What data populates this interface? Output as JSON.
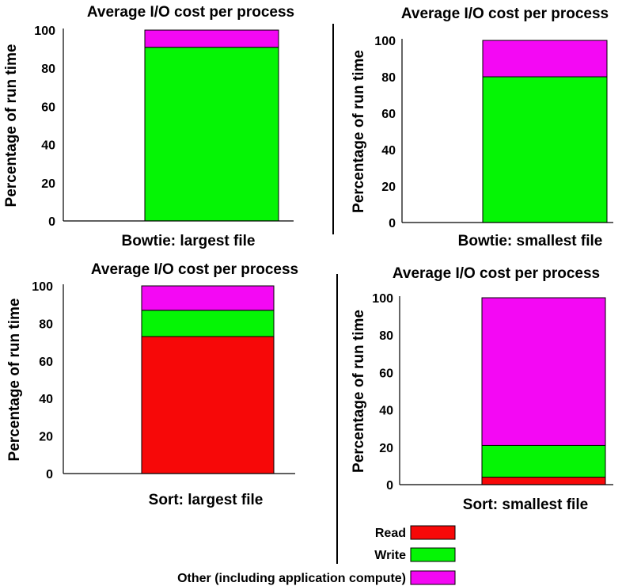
{
  "colors": {
    "read": "#f70808",
    "write": "#05f505",
    "other": "#f408f4"
  },
  "legend": {
    "items": [
      {
        "key": "read",
        "label": "Read",
        "color": "#f70808"
      },
      {
        "key": "write",
        "label": "Write",
        "color": "#05f505"
      },
      {
        "key": "other",
        "label": "Other (including application compute)",
        "color": "#f408f4"
      }
    ]
  },
  "chart_data": [
    {
      "type": "bar",
      "stacked": true,
      "title": "Average I/O cost per process",
      "xlabel": "Bowtie: largest file",
      "ylabel": "Percentage of run time",
      "ylim": [
        0,
        100
      ],
      "yticks": [
        "0",
        "20",
        "40",
        "60",
        "80",
        "100"
      ],
      "series": [
        {
          "name": "Read",
          "value": 0
        },
        {
          "name": "Write",
          "value": 91
        },
        {
          "name": "Other (including application compute)",
          "value": 9
        }
      ]
    },
    {
      "type": "bar",
      "stacked": true,
      "title": "Average I/O cost per process",
      "xlabel": "Bowtie: smallest file",
      "ylabel": "Percentage of run time",
      "ylim": [
        0,
        100
      ],
      "yticks": [
        "0",
        "20",
        "40",
        "60",
        "80",
        "100"
      ],
      "series": [
        {
          "name": "Read",
          "value": 0
        },
        {
          "name": "Write",
          "value": 80
        },
        {
          "name": "Other (including application compute)",
          "value": 20
        }
      ]
    },
    {
      "type": "bar",
      "stacked": true,
      "title": "Average I/O cost per process",
      "xlabel": "Sort: largest file",
      "ylabel": "Percentage of run time",
      "ylim": [
        0,
        100
      ],
      "yticks": [
        "0",
        "20",
        "40",
        "60",
        "80",
        "100"
      ],
      "series": [
        {
          "name": "Read",
          "value": 73
        },
        {
          "name": "Write",
          "value": 14
        },
        {
          "name": "Other (including application compute)",
          "value": 13
        }
      ]
    },
    {
      "type": "bar",
      "stacked": true,
      "title": "Average I/O cost per process",
      "xlabel": "Sort: smallest file",
      "ylabel": "Percentage of run time",
      "ylim": [
        0,
        100
      ],
      "yticks": [
        "0",
        "20",
        "40",
        "60",
        "80",
        "100"
      ],
      "series": [
        {
          "name": "Read",
          "value": 4
        },
        {
          "name": "Write",
          "value": 17
        },
        {
          "name": "Other (including application compute)",
          "value": 79
        }
      ]
    }
  ]
}
